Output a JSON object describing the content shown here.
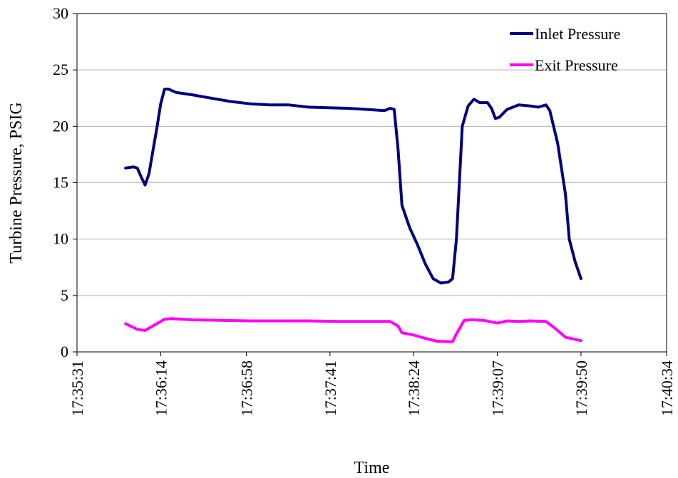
{
  "chart_data": {
    "type": "line",
    "title": "",
    "xlabel": "Time",
    "ylabel": "Turbine Pressure, PSIG",
    "ylim": [
      0,
      30
    ],
    "yticks": [
      "0",
      "5",
      "10",
      "15",
      "20",
      "25",
      "30"
    ],
    "xlim": [
      "17:35:31",
      "17:40:34"
    ],
    "xticks": [
      "17:35:31",
      "17:36:14",
      "17:36:58",
      "17:37:41",
      "17:38:24",
      "17:39:07",
      "17:39:50",
      "17:40:34"
    ],
    "grid": "horizontal",
    "legend_position": "top-right",
    "series": [
      {
        "name": "Inlet Pressure",
        "color": "#000080",
        "points": [
          [
            "17:35:56",
            16.3
          ],
          [
            "17:36:00",
            16.4
          ],
          [
            "17:36:02",
            16.3
          ],
          [
            "17:36:04",
            15.5
          ],
          [
            "17:36:06",
            14.8
          ],
          [
            "17:36:08",
            15.8
          ],
          [
            "17:36:10",
            17.8
          ],
          [
            "17:36:12",
            19.8
          ],
          [
            "17:36:14",
            22.0
          ],
          [
            "17:36:16",
            23.3
          ],
          [
            "17:36:18",
            23.3
          ],
          [
            "17:36:22",
            23.0
          ],
          [
            "17:36:30",
            22.8
          ],
          [
            "17:36:40",
            22.5
          ],
          [
            "17:36:50",
            22.2
          ],
          [
            "17:37:00",
            22.0
          ],
          [
            "17:37:10",
            21.9
          ],
          [
            "17:37:20",
            21.9
          ],
          [
            "17:37:30",
            21.7
          ],
          [
            "17:37:40",
            21.65
          ],
          [
            "17:37:50",
            21.6
          ],
          [
            "17:38:00",
            21.5
          ],
          [
            "17:38:09",
            21.4
          ],
          [
            "17:38:12",
            21.6
          ],
          [
            "17:38:14",
            21.5
          ],
          [
            "17:38:16",
            18.0
          ],
          [
            "17:38:18",
            13.0
          ],
          [
            "17:38:22",
            11.0
          ],
          [
            "17:38:26",
            9.5
          ],
          [
            "17:38:30",
            7.8
          ],
          [
            "17:38:34",
            6.5
          ],
          [
            "17:38:38",
            6.1
          ],
          [
            "17:38:42",
            6.2
          ],
          [
            "17:38:44",
            6.5
          ],
          [
            "17:38:46",
            10.0
          ],
          [
            "17:38:49",
            20.0
          ],
          [
            "17:38:52",
            21.8
          ],
          [
            "17:38:55",
            22.4
          ],
          [
            "17:38:58",
            22.1
          ],
          [
            "17:39:02",
            22.1
          ],
          [
            "17:39:04",
            21.6
          ],
          [
            "17:39:06",
            20.7
          ],
          [
            "17:39:08",
            20.8
          ],
          [
            "17:39:12",
            21.5
          ],
          [
            "17:39:18",
            21.9
          ],
          [
            "17:39:24",
            21.8
          ],
          [
            "17:39:28",
            21.7
          ],
          [
            "17:39:32",
            21.9
          ],
          [
            "17:39:34",
            21.4
          ],
          [
            "17:39:38",
            18.5
          ],
          [
            "17:39:42",
            14.0
          ],
          [
            "17:39:44",
            10.0
          ],
          [
            "17:39:47",
            8.0
          ],
          [
            "17:39:50",
            6.5
          ]
        ]
      },
      {
        "name": "Exit Pressure",
        "color": "#ff00ff",
        "points": [
          [
            "17:35:56",
            2.5
          ],
          [
            "17:36:02",
            2.0
          ],
          [
            "17:36:06",
            1.9
          ],
          [
            "17:36:10",
            2.3
          ],
          [
            "17:36:16",
            2.9
          ],
          [
            "17:36:20",
            2.95
          ],
          [
            "17:36:30",
            2.85
          ],
          [
            "17:36:45",
            2.8
          ],
          [
            "17:37:00",
            2.75
          ],
          [
            "17:37:15",
            2.75
          ],
          [
            "17:37:30",
            2.75
          ],
          [
            "17:37:45",
            2.7
          ],
          [
            "17:38:00",
            2.7
          ],
          [
            "17:38:12",
            2.7
          ],
          [
            "17:38:16",
            2.3
          ],
          [
            "17:38:18",
            1.7
          ],
          [
            "17:38:24",
            1.5
          ],
          [
            "17:38:30",
            1.2
          ],
          [
            "17:38:36",
            0.95
          ],
          [
            "17:38:44",
            0.9
          ],
          [
            "17:38:46",
            1.6
          ],
          [
            "17:38:50",
            2.8
          ],
          [
            "17:38:54",
            2.85
          ],
          [
            "17:39:00",
            2.8
          ],
          [
            "17:39:07",
            2.55
          ],
          [
            "17:39:12",
            2.75
          ],
          [
            "17:39:18",
            2.7
          ],
          [
            "17:39:24",
            2.75
          ],
          [
            "17:39:32",
            2.7
          ],
          [
            "17:39:36",
            2.2
          ],
          [
            "17:39:42",
            1.3
          ],
          [
            "17:39:50",
            1.0
          ]
        ]
      }
    ]
  }
}
